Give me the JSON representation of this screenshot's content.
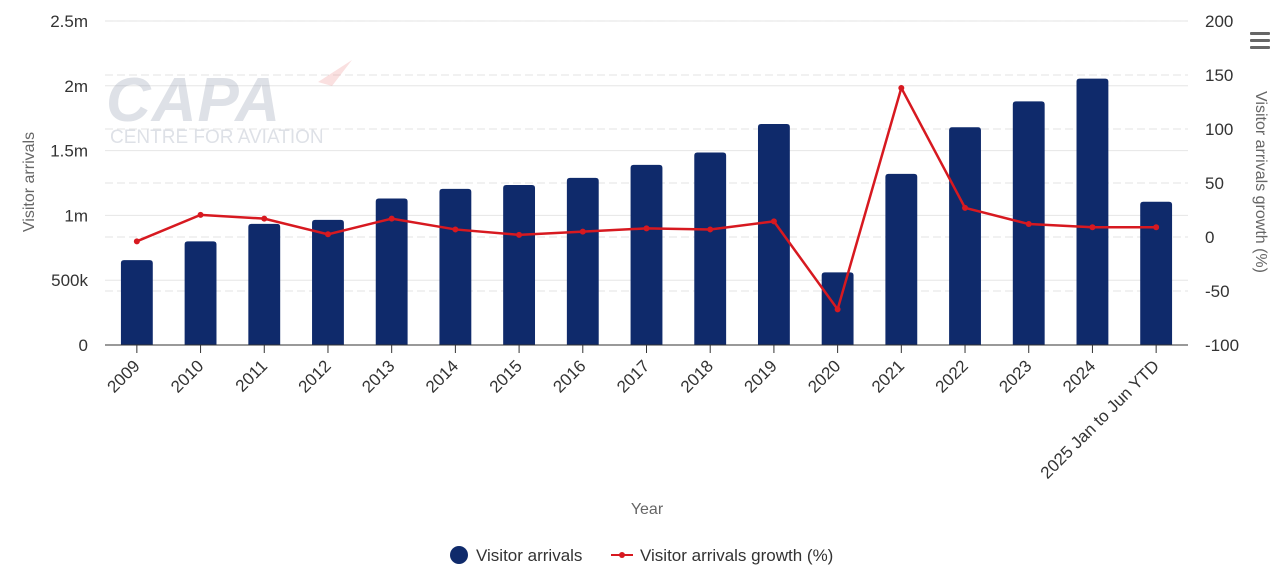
{
  "chart_data": {
    "type": "bar",
    "categories": [
      "2009",
      "2010",
      "2011",
      "2012",
      "2013",
      "2014",
      "2015",
      "2016",
      "2017",
      "2018",
      "2019",
      "2020",
      "2021",
      "2022",
      "2023",
      "2024",
      "2025 Jan to Jun YTD"
    ],
    "xlabel": "Year",
    "series": [
      {
        "name": "Visitor arrivals",
        "type": "bar",
        "axis": "left",
        "color": "#0f2a6b",
        "values": [
          655000,
          800000,
          935000,
          965000,
          1130000,
          1205000,
          1235000,
          1290000,
          1390000,
          1485000,
          1705000,
          560000,
          1320000,
          1680000,
          1880000,
          2055000,
          1105000
        ]
      },
      {
        "name": "Visitor arrivals growth (%)",
        "type": "line",
        "axis": "right",
        "color": "#d71920",
        "values": [
          -4,
          20.5,
          17,
          2.5,
          17,
          7,
          2,
          5,
          8,
          7,
          14.5,
          -67,
          138,
          27,
          12,
          9,
          9
        ]
      }
    ],
    "y_left": {
      "label": "Visitor arrivals",
      "ylim": [
        0,
        2500000
      ],
      "ticks": [
        0,
        500000,
        1000000,
        1500000,
        2000000,
        2500000
      ],
      "tick_labels": [
        "0",
        "500k",
        "1m",
        "1.5m",
        "2m",
        "2.5m"
      ]
    },
    "y_right": {
      "label": "Visitor arrivals growth (%)",
      "ylim": [
        -100,
        200
      ],
      "ticks": [
        -100,
        -50,
        0,
        50,
        100,
        150,
        200
      ],
      "tick_labels": [
        "-100",
        "-50",
        "0",
        "50",
        "100",
        "150",
        "200"
      ]
    },
    "grid": true,
    "legend_position": "bottom-center"
  },
  "watermark": {
    "brand": "CAPA",
    "tagline": "CENTRE FOR AVIATION"
  },
  "menu_icon": "hamburger-menu-icon"
}
